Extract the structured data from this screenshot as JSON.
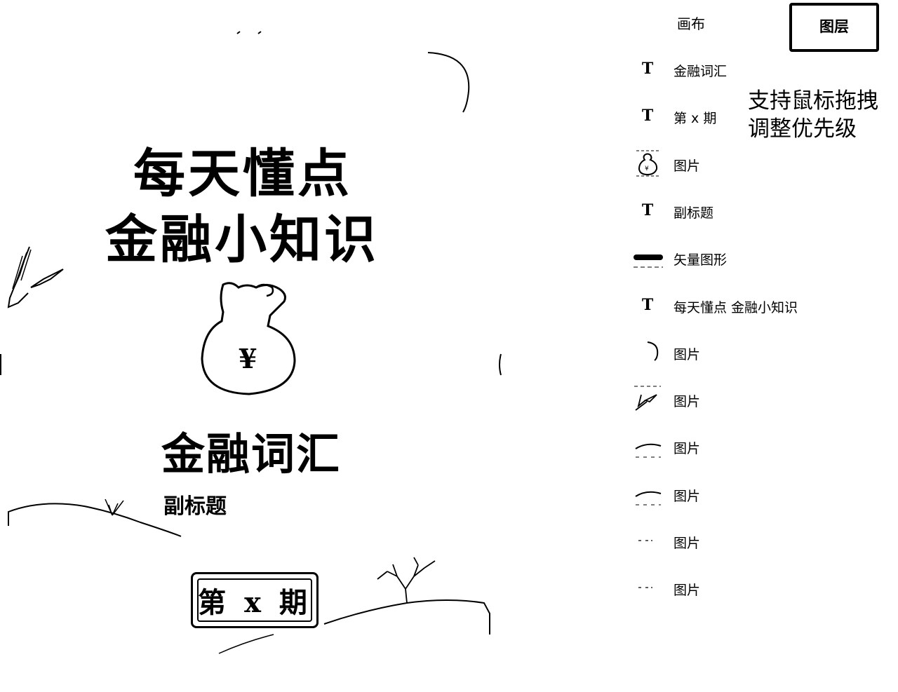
{
  "canvas": {
    "title_line_1": "每天懂点",
    "title_line_2": "金融小知识",
    "heading": "金融词汇",
    "subtitle": "副标题",
    "issue_badge": "第 x 期",
    "money_bag_symbol": "¥"
  },
  "panel": {
    "tabs": {
      "canvas": "画布",
      "layers": "图层"
    },
    "active_tab": "图层",
    "hint_line_1": "支持鼠标拖拽",
    "hint_line_2": "调整优先级",
    "layers": [
      {
        "type": "text",
        "icon": "text-icon",
        "icon_glyph": "T",
        "label": "金融词汇"
      },
      {
        "type": "text",
        "icon": "text-icon",
        "icon_glyph": "T",
        "label": "第 x 期"
      },
      {
        "type": "image",
        "icon": "money-bag-thumbnail",
        "label": "图片"
      },
      {
        "type": "text",
        "icon": "text-icon",
        "icon_glyph": "T",
        "label": "副标题"
      },
      {
        "type": "vector",
        "icon": "line-thumbnail",
        "label": "矢量图形"
      },
      {
        "type": "text",
        "icon": "text-icon",
        "icon_glyph": "T",
        "label": "每天懂点 金融小知识"
      },
      {
        "type": "image",
        "icon": "arc-thumbnail",
        "label": "图片"
      },
      {
        "type": "image",
        "icon": "bird-thumbnail",
        "label": "图片"
      },
      {
        "type": "image",
        "icon": "hill-thumbnail",
        "label": "图片"
      },
      {
        "type": "image",
        "icon": "hill-thumbnail",
        "label": "图片"
      },
      {
        "type": "image",
        "icon": "dots-thumbnail",
        "label": "图片"
      },
      {
        "type": "image",
        "icon": "dots-thumbnail",
        "label": "图片"
      }
    ]
  },
  "colors": {
    "ink": "#000000",
    "background": "#ffffff"
  }
}
